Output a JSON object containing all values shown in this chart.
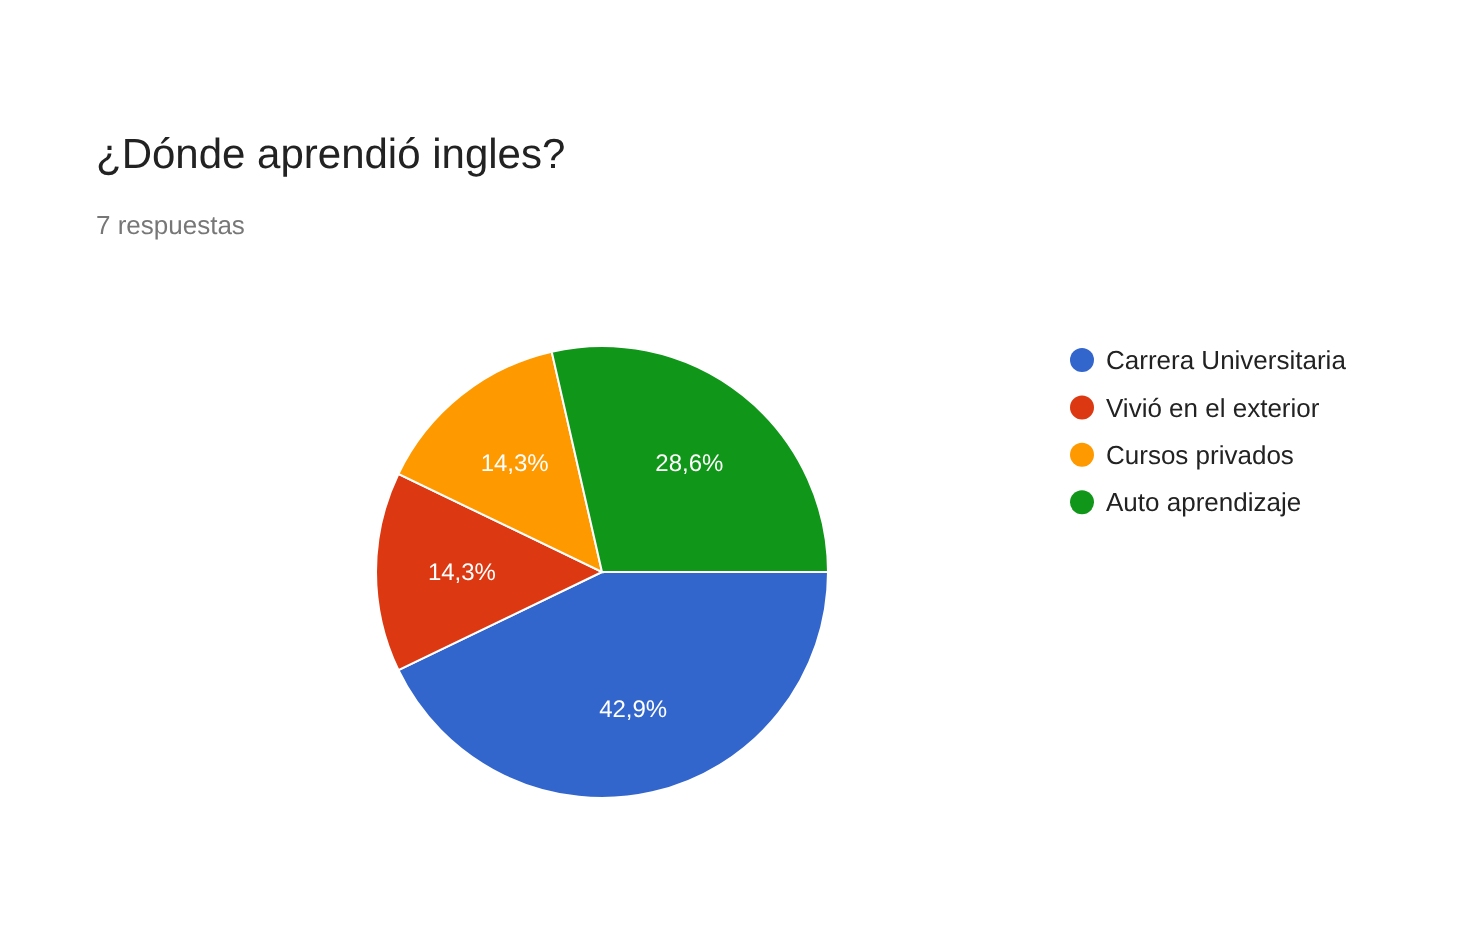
{
  "chart_data": {
    "type": "pie",
    "title": "¿Dónde aprendió ingles?",
    "subtitle": "7 respuestas",
    "categories": [
      "Carrera Universitaria",
      "Vivió en el exterior",
      "Cursos privados",
      "Auto aprendizaje"
    ],
    "values": [
      42.9,
      14.3,
      14.3,
      28.6
    ],
    "value_labels": [
      "42,9%",
      "14,3%",
      "14,3%",
      "28,6%"
    ],
    "colors": [
      "#3366cc",
      "#dc3912",
      "#ff9900",
      "#109618"
    ],
    "legend": "right"
  }
}
